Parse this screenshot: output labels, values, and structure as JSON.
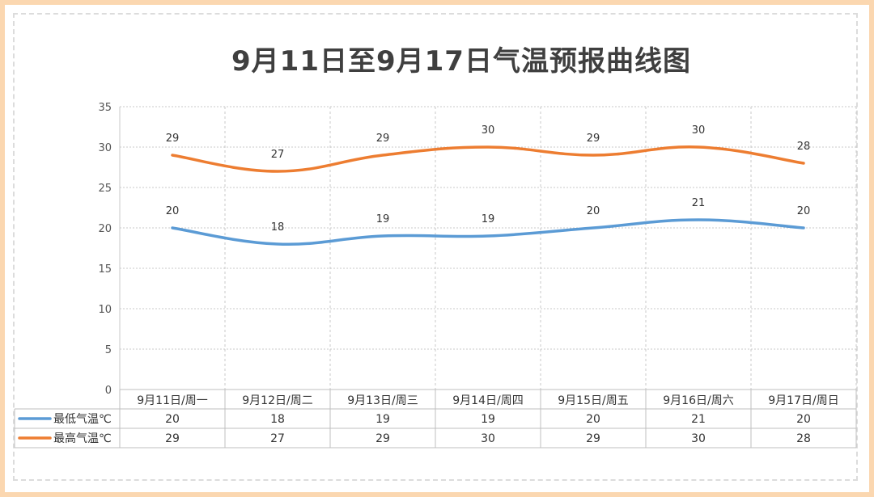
{
  "chart_data": {
    "type": "line",
    "title": "9月11日至9月17日气温预报曲线图",
    "categories": [
      "9月11日/周一",
      "9月12日/周二",
      "9月13日/周三",
      "9月14日/周四",
      "9月15日/周五",
      "9月16日/周六",
      "9月17日/周日"
    ],
    "series": [
      {
        "name": "最低气温℃",
        "values": [
          20,
          18,
          19,
          19,
          20,
          21,
          20
        ],
        "color": "#5b9bd5"
      },
      {
        "name": "最高气温℃",
        "values": [
          29,
          27,
          29,
          30,
          29,
          30,
          28
        ],
        "color": "#ed7d31"
      }
    ],
    "ylim": [
      0,
      35
    ],
    "yticks": [
      0,
      5,
      10,
      15,
      20,
      25,
      30,
      35
    ],
    "grid": true,
    "legend": "data-table"
  }
}
